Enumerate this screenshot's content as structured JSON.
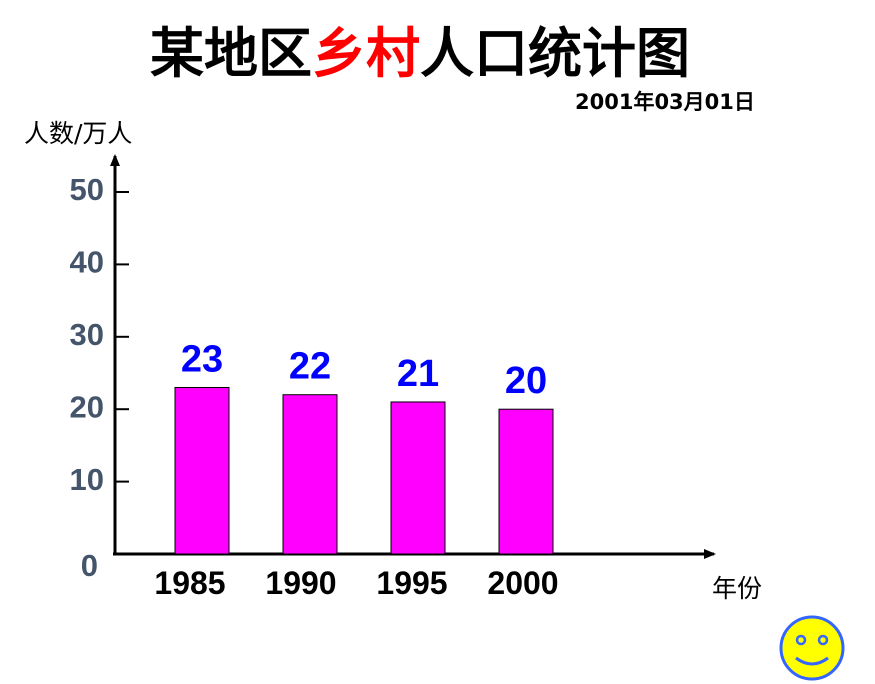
{
  "title": {
    "part1": "某地区",
    "highlight": "乡村",
    "part2": "人口统计图"
  },
  "date": "2001年03月01日",
  "colors": {
    "bar": "#ff00ff",
    "data_label": "#0000ff",
    "title_highlight": "#ff0000",
    "ytick": "#44546a",
    "smiley_face": "#ffff00",
    "smiley_outline": "#3366ff"
  },
  "decoration": {
    "icon": "smiley-face-icon"
  },
  "chart_data": {
    "type": "bar",
    "title": "某地区乡村人口统计图",
    "xlabel": "年份",
    "ylabel": "人数/万人",
    "categories": [
      "1985",
      "1990",
      "1995",
      "2000"
    ],
    "values": [
      23,
      22,
      21,
      20
    ],
    "data_labels": [
      "23",
      "22",
      "21",
      "20"
    ],
    "yticks": [
      0,
      10,
      20,
      30,
      40,
      50
    ],
    "ytick_labels": [
      "0",
      "10",
      "20",
      "30",
      "40",
      "50"
    ],
    "ylim": [
      0,
      50
    ],
    "grid": false,
    "legend": "none"
  }
}
